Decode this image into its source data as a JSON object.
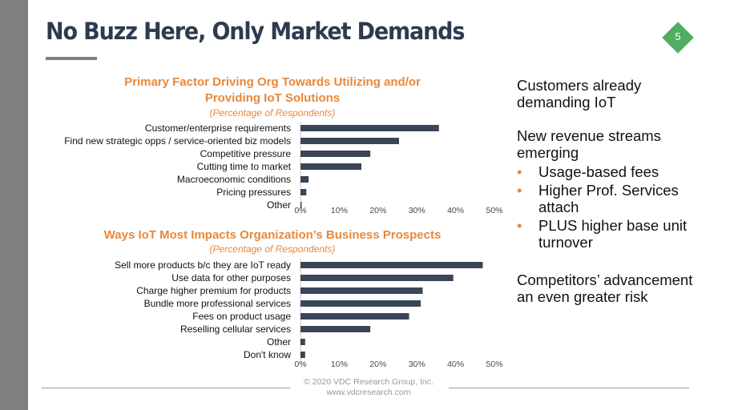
{
  "slide": {
    "title": "No Buzz Here, Only Market Demands",
    "page_number": "5",
    "colors": {
      "title": "#2e3a4f",
      "accent_orange": "#e8883a",
      "bar": "#3a4558",
      "page_badge": "#4fae63",
      "sidebar": "#7f7f7f"
    }
  },
  "chart_data": [
    {
      "type": "bar",
      "orientation": "horizontal",
      "title": "Primary Factor Driving Org Towards Utilizing and/or Providing IoT Solutions",
      "title_lines": [
        "Primary Factor Driving Org Towards Utilizing and/or",
        "Providing IoT Solutions"
      ],
      "subtitle": "(Percentage of Respondents)",
      "categories": [
        "Customer/enterprise requirements",
        "Find new strategic opps / service-oriented biz models",
        "Competitive pressure",
        "Cutting time to market",
        "Macroeconomic conditions",
        "Pricing pressures",
        "Other"
      ],
      "values": [
        35.7,
        25.4,
        18,
        15.7,
        2.1,
        1.5,
        0.3
      ],
      "xlim": [
        0,
        50
      ],
      "ticks": [
        "0%",
        "10%",
        "20%",
        "30%",
        "40%",
        "50%"
      ],
      "grid": false
    },
    {
      "type": "bar",
      "orientation": "horizontal",
      "title": "Ways IoT Most Impacts Organization’s Business Prospects",
      "title_lines": [
        "Ways IoT Most Impacts Organization’s Business Prospects"
      ],
      "subtitle": "(Percentage of Respondents)",
      "categories": [
        "Sell more products b/c they are IoT ready",
        "Use data for other purposes",
        "Charge higher premium for products",
        "Bundle more professional services",
        "Fees on product usage",
        "Reselling cellular services",
        "Other",
        "Don't know"
      ],
      "values": [
        47,
        39.4,
        31.5,
        31,
        28,
        18,
        1.2,
        1.2
      ],
      "xlim": [
        0,
        50
      ],
      "ticks": [
        "0%",
        "10%",
        "20%",
        "30%",
        "40%",
        "50%"
      ],
      "grid": false
    }
  ],
  "right_panel": {
    "point1": "Customers already demanding IoT",
    "point2": "New revenue streams emerging",
    "bullets": [
      "Usage-based fees",
      "Higher Prof. Services attach",
      "PLUS higher base unit turnover"
    ],
    "point3": "Competitors’ advancement an even greater risk"
  },
  "footer": {
    "copyright": "© 2020 VDC Research Group, Inc.",
    "website": "www.vdcresearch.com"
  }
}
